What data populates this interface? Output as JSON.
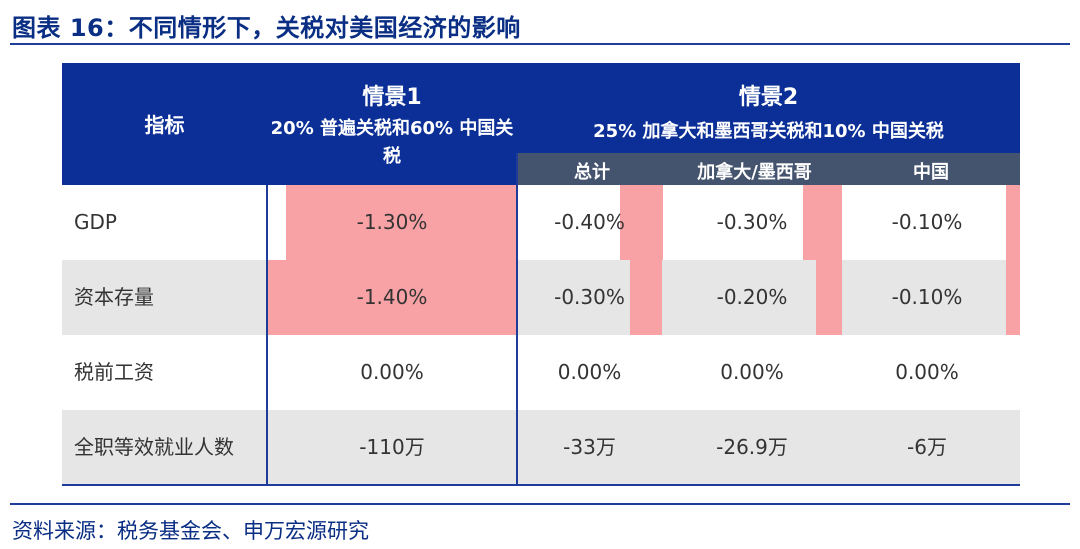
{
  "title": "图表 16：不同情形下，关税对美国经济的影响",
  "source": "资料来源：税务基金会、申万宏源研究",
  "header": {
    "indicator": "指标",
    "scenario1_title": "情景1",
    "scenario1_desc": "20% 普遍关税和60% 中国关税",
    "scenario2_title": "情景2",
    "scenario2_desc": "25% 加拿大和墨西哥关税和10% 中国关税",
    "sub_total": "总计",
    "sub_canmex": "加拿大/墨西哥",
    "sub_china": "中国"
  },
  "rows": [
    {
      "label": "GDP",
      "s1": "-1.30%",
      "total": "-0.40%",
      "canmex": "-0.30%",
      "china": "-0.10%"
    },
    {
      "label": "资本存量",
      "s1": "-1.40%",
      "total": "-0.30%",
      "canmex": "-0.20%",
      "china": "-0.10%"
    },
    {
      "label": "税前工资",
      "s1": "0.00%",
      "total": "0.00%",
      "canmex": "0.00%",
      "china": "0.00%"
    },
    {
      "label": "全职等效就业人数",
      "s1": "-110万",
      "total": "-33万",
      "canmex": "-26.9万",
      "china": "-6万"
    }
  ],
  "bars": [
    {
      "s1": 1.3,
      "total": 0.4,
      "canmex": 0.3,
      "china": 0.1
    },
    {
      "s1": 1.4,
      "total": 0.3,
      "canmex": 0.2,
      "china": 0.1
    }
  ],
  "colors": {
    "accent": "#0b2f96",
    "bar": "#f9a2a5",
    "subheader": "#45546e"
  }
}
